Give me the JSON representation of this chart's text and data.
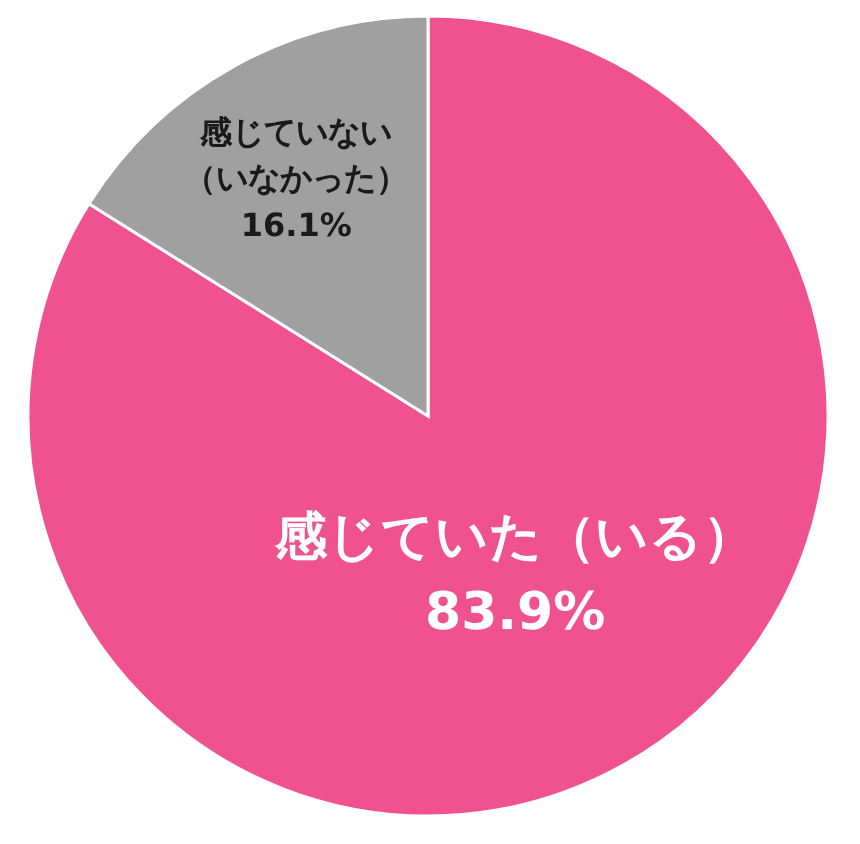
{
  "chart_data": {
    "type": "pie",
    "categories": [
      "感じていた（いる）",
      "感じていない（いなかった）"
    ],
    "values": [
      83.9,
      16.1
    ],
    "value_labels": [
      "83.9%",
      "16.1%"
    ],
    "colors": [
      "#f05290",
      "#a0a0a0"
    ]
  }
}
